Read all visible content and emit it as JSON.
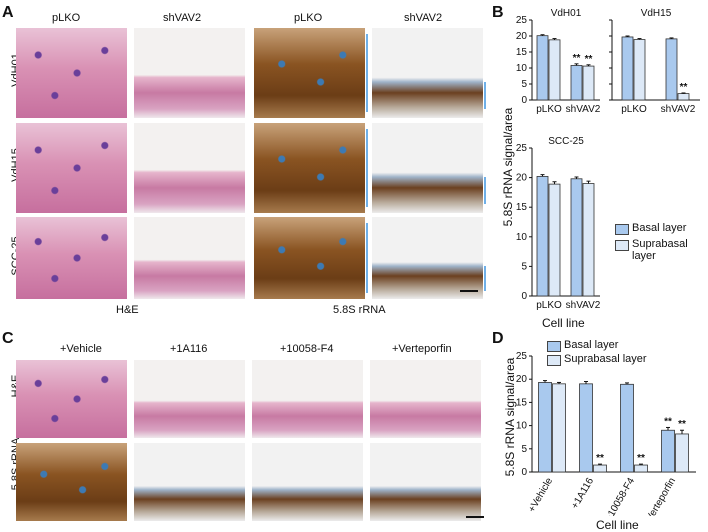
{
  "panel_letters": {
    "A": "A",
    "B": "B",
    "C": "C",
    "D": "D"
  },
  "panelA": {
    "col_labels": [
      "pLKO",
      "shVAV2",
      "pLKO",
      "shVAV2"
    ],
    "row_labels": [
      "VdH01",
      "VdH15",
      "SCC-25"
    ],
    "stain_labels": [
      "H&E",
      "5.8S rRNA"
    ]
  },
  "panelC": {
    "col_labels": [
      "+Vehicle",
      "+1A116",
      "+10058-F4",
      "+Verteporfin"
    ],
    "row_labels": [
      "H&E",
      "5.8S rRNA"
    ]
  },
  "colors": {
    "basal": "#a9c9ee",
    "suprabasal": "#dde9f7",
    "bracket": "#6fb0e8"
  },
  "chart_data": [
    {
      "type": "bar",
      "title": "VdH01",
      "categories": [
        "pLKO",
        "shVAV2"
      ],
      "series": [
        {
          "name": "Basal layer",
          "values": [
            20.1,
            10.8
          ],
          "errors": [
            0.3,
            0.5
          ]
        },
        {
          "name": "Suprabasal layer",
          "values": [
            18.8,
            10.6
          ],
          "errors": [
            0.4,
            0.4
          ]
        }
      ],
      "ylim": [
        0,
        25
      ],
      "yticks": [
        0,
        5,
        10,
        15,
        20,
        25
      ],
      "annotations": [
        [
          "",
          ""
        ],
        [
          "**",
          "**"
        ]
      ]
    },
    {
      "type": "bar",
      "title": "VdH15",
      "categories": [
        "pLKO",
        "shVAV2"
      ],
      "series": [
        {
          "name": "Basal layer",
          "values": [
            19.7,
            19.1
          ],
          "errors": [
            0.3,
            0.3
          ]
        },
        {
          "name": "Suprabasal layer",
          "values": [
            18.9,
            2.0
          ],
          "errors": [
            0.3,
            0.2
          ]
        }
      ],
      "ylim": [
        0,
        25
      ],
      "yticks": [
        0,
        5,
        10,
        15,
        20,
        25
      ],
      "annotations": [
        [
          "",
          ""
        ],
        [
          "",
          "**"
        ]
      ]
    },
    {
      "type": "bar",
      "title": "SCC-25",
      "categories": [
        "pLKO",
        "shVAV2"
      ],
      "series": [
        {
          "name": "Basal layer",
          "values": [
            20.2,
            19.8
          ],
          "errors": [
            0.3,
            0.3
          ]
        },
        {
          "name": "Suprabasal layer",
          "values": [
            18.9,
            19.0
          ],
          "errors": [
            0.4,
            0.4
          ]
        }
      ],
      "ylim": [
        0,
        25
      ],
      "yticks": [
        0,
        5,
        10,
        15,
        20,
        25
      ],
      "annotations": [
        [
          "",
          ""
        ],
        [
          "",
          ""
        ]
      ]
    },
    {
      "type": "bar",
      "title": "",
      "categories": [
        "+Vehicle",
        "+1A116",
        "+10058-F4",
        "+Verteporfin"
      ],
      "series": [
        {
          "name": "Basal layer",
          "values": [
            19.3,
            19.0,
            18.9,
            9.0
          ],
          "errors": [
            0.4,
            0.5,
            0.3,
            0.6
          ]
        },
        {
          "name": "Suprabasal layer",
          "values": [
            19.0,
            1.5,
            1.5,
            8.2
          ],
          "errors": [
            0.3,
            0.2,
            0.2,
            0.8
          ]
        }
      ],
      "ylim": [
        0,
        25
      ],
      "yticks": [
        0,
        5,
        10,
        15,
        20,
        25
      ],
      "annotations": [
        [
          "",
          ""
        ],
        [
          "",
          "**"
        ],
        [
          "",
          "**"
        ],
        [
          "**",
          "**"
        ]
      ]
    }
  ],
  "panelB": {
    "ylabel": "5.8S rRNA signal/area",
    "xlabel": "Cell line",
    "legend": [
      "Basal layer",
      "Suprabasal layer"
    ]
  },
  "panelD": {
    "ylabel": "5.8S rRNA signal/area",
    "xlabel": "Cell line",
    "legend": [
      "Basal layer",
      "Suprabasal layer"
    ]
  }
}
